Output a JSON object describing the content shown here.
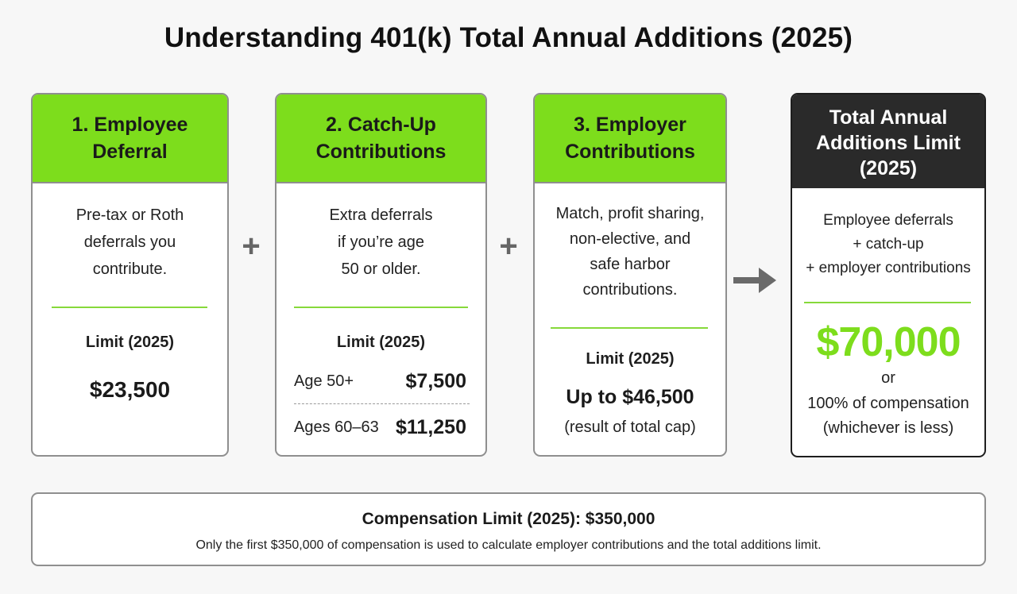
{
  "title": "Understanding 401(k) Total Annual Additions (2025)",
  "accent_color": "#7ddd1c",
  "cards": [
    {
      "heading_lines": [
        "1. Employee",
        "Deferral"
      ],
      "description_lines": [
        "Pre-tax or Roth",
        "deferrals you",
        "contribute."
      ],
      "limit_label": "Limit (2025)",
      "limit_value": "$23,500"
    },
    {
      "heading_lines": [
        "2. Catch-Up",
        "Contributions"
      ],
      "description_lines": [
        "Extra deferrals",
        "if you’re age",
        "50 or older."
      ],
      "limit_label": "Limit (2025)",
      "rows": [
        {
          "label": "Age 50+",
          "value": "$7,500"
        },
        {
          "label": "Ages 60–63",
          "value": "$11,250"
        }
      ]
    },
    {
      "heading_lines": [
        "3. Employer",
        "Contributions"
      ],
      "description_lines": [
        "Match, profit sharing,",
        "non-elective, and",
        "safe harbor",
        "contributions."
      ],
      "limit_label": "Limit (2025)",
      "limit_value": "Up to $46,500",
      "limit_note": "(result of total cap)"
    }
  ],
  "operators": {
    "plus": "+",
    "arrow_icon": "right-arrow-icon"
  },
  "total": {
    "heading_lines": [
      "Total Annual",
      "Additions Limit",
      "(2025)"
    ],
    "description_lines": [
      "Employee deferrals",
      "+ catch-up",
      "+ employer contributions"
    ],
    "amount": "$70,000",
    "or": "or",
    "alternative_lines": [
      "100% of compensation",
      "(whichever is less)"
    ]
  },
  "footer": {
    "title": "Compensation Limit (2025): $350,000",
    "text": "Only the first $350,000 of compensation is used to calculate employer contributions and the total additions limit."
  }
}
